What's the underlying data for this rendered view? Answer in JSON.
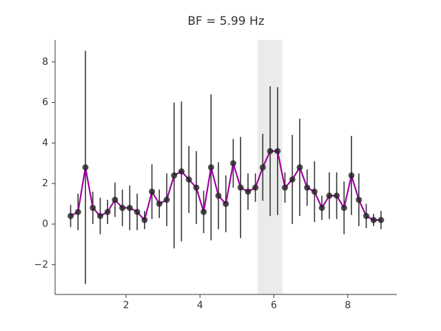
{
  "chart_data": {
    "type": "line",
    "title": "BF = 5.99 Hz",
    "x": [
      0.5,
      0.7,
      0.9,
      1.1,
      1.3,
      1.5,
      1.7,
      1.9,
      2.1,
      2.3,
      2.5,
      2.7,
      2.9,
      3.1,
      3.3,
      3.5,
      3.7,
      3.9,
      4.1,
      4.3,
      4.5,
      4.7,
      4.9,
      5.1,
      5.3,
      5.5,
      5.7,
      5.9,
      6.1,
      6.3,
      6.5,
      6.7,
      6.9,
      7.1,
      7.3,
      7.5,
      7.7,
      7.9,
      8.1,
      8.3,
      8.5,
      8.7,
      8.9
    ],
    "values": [
      0.4,
      0.6,
      2.8,
      0.8,
      0.4,
      0.6,
      1.2,
      0.8,
      0.8,
      0.6,
      0.2,
      1.6,
      1.0,
      1.2,
      2.4,
      2.6,
      2.2,
      1.8,
      0.6,
      2.8,
      1.4,
      1.0,
      3.0,
      1.8,
      1.6,
      1.8,
      2.8,
      3.6,
      3.6,
      1.8,
      2.2,
      2.8,
      1.8,
      1.6,
      0.8,
      1.4,
      1.4,
      0.8,
      2.4,
      1.2,
      0.4,
      0.2,
      0.2
    ],
    "errors": [
      0.55,
      0.9,
      5.75,
      0.8,
      0.9,
      0.6,
      0.85,
      0.9,
      1.1,
      0.9,
      0.45,
      1.35,
      0.7,
      1.3,
      3.6,
      3.45,
      1.65,
      1.8,
      1.05,
      3.6,
      1.65,
      1.4,
      1.2,
      2.5,
      0.9,
      0.7,
      1.65,
      3.2,
      3.15,
      0.75,
      2.2,
      2.4,
      0.9,
      1.5,
      0.6,
      1.15,
      1.15,
      1.3,
      1.95,
      1.3,
      0.6,
      0.3,
      0.45
    ],
    "line_color": "#a000a0",
    "marker_color": "#222222",
    "error_color": "#333333",
    "highlight_span": [
      5.56,
      6.23
    ],
    "highlight_color": "#ebebeb",
    "xlim": [
      0.08,
      9.33
    ],
    "ylim": [
      -3.47,
      9.08
    ],
    "xticks": [
      2,
      4,
      6,
      8
    ],
    "yticks": [
      {
        "value": -2,
        "label": "−2"
      },
      0,
      2,
      4,
      6,
      8
    ]
  }
}
